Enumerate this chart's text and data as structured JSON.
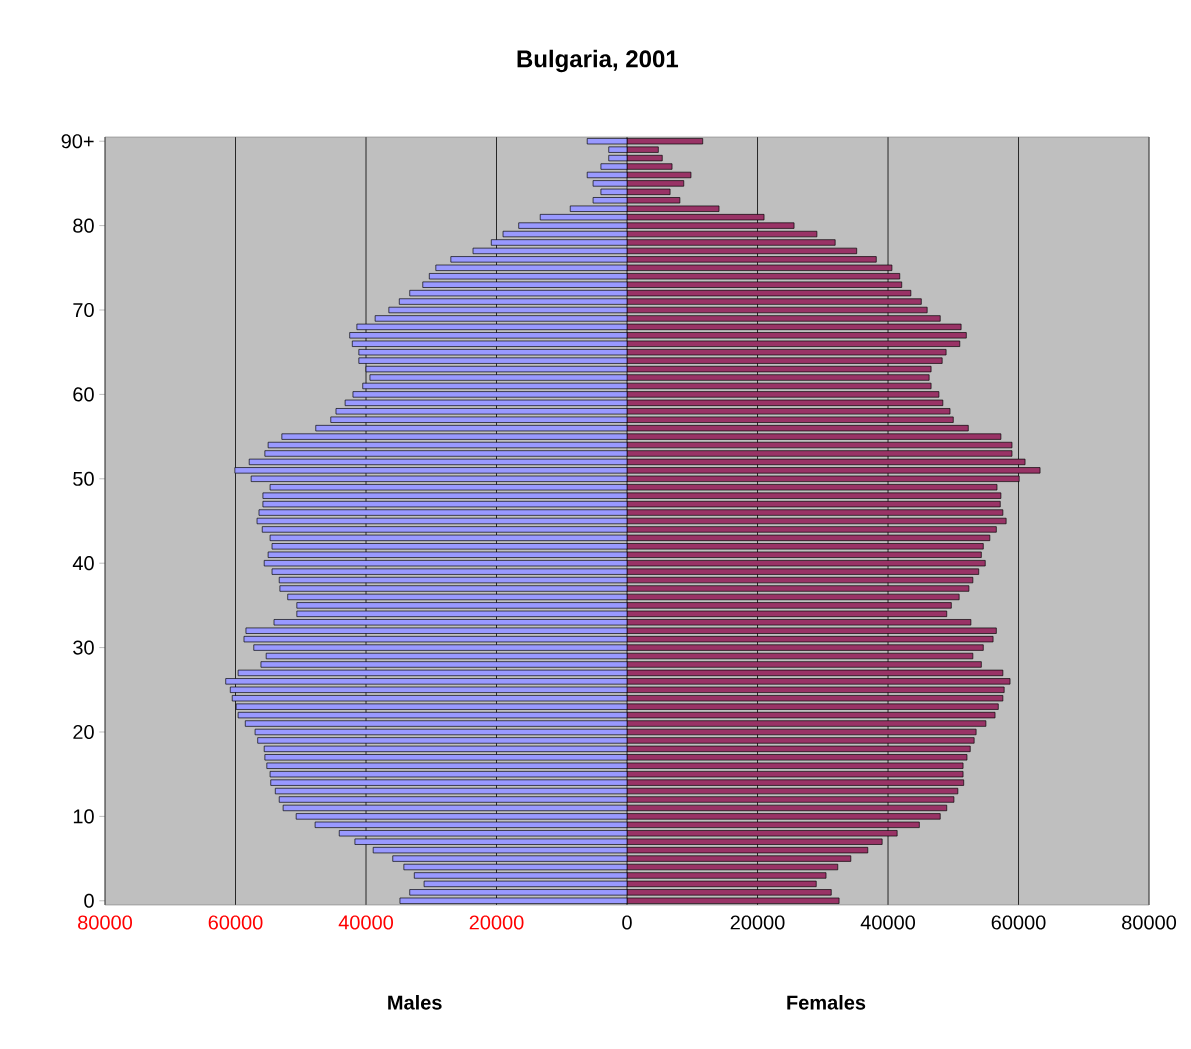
{
  "chart_data": {
    "type": "bar",
    "orientation": "horizontal",
    "title": "Bulgaria, 2001",
    "annotations": [
      "Males",
      "Females"
    ],
    "categories": [
      "90+",
      null,
      null,
      null,
      null,
      null,
      null,
      null,
      null,
      null,
      "80",
      null,
      null,
      null,
      null,
      null,
      null,
      null,
      null,
      null,
      "70",
      null,
      null,
      null,
      null,
      null,
      null,
      null,
      null,
      null,
      "60",
      null,
      null,
      null,
      null,
      null,
      null,
      null,
      null,
      null,
      "50",
      null,
      null,
      null,
      null,
      null,
      null,
      null,
      null,
      null,
      "40",
      null,
      null,
      null,
      null,
      null,
      null,
      null,
      null,
      null,
      "30",
      null,
      null,
      null,
      null,
      null,
      null,
      null,
      null,
      null,
      "20",
      null,
      null,
      null,
      null,
      null,
      null,
      null,
      null,
      null,
      "10",
      null,
      null,
      null,
      null,
      null,
      null,
      null,
      null,
      null,
      "0"
    ],
    "series": [
      {
        "color": "#9999ff",
        "values": [
          -6100,
          -2800,
          -2800,
          -4000,
          -6100,
          -5200,
          -4000,
          -5200,
          -8700,
          -13300,
          -16600,
          -19000,
          -20800,
          -23600,
          -27000,
          -29300,
          -30300,
          -31300,
          -33300,
          -34900,
          -36500,
          -38600,
          -41400,
          -42500,
          -42100,
          -41100,
          -41100,
          -40000,
          -39400,
          -40500,
          -42000,
          -43200,
          -44600,
          -45400,
          -47700,
          -52900,
          -55000,
          -55500,
          -57900,
          -60100,
          -57600,
          -54700,
          -55800,
          -55800,
          -56400,
          -56700,
          -55900,
          -54700,
          -54400,
          -55000,
          -55600,
          -54400,
          -53300,
          -53200,
          -52000,
          -50600,
          -50600,
          -54100,
          -58400,
          -58700,
          -57200,
          -55300,
          -56100,
          -59600,
          -61500,
          -60800,
          -60500,
          -59900,
          -59600,
          -58500,
          -57000,
          -56600,
          -55600,
          -55500,
          -55200,
          -54700,
          -54600,
          -53900,
          -53300,
          -52700,
          -50700,
          -47800,
          -44100,
          -41700,
          -38900,
          -35900,
          -34200,
          -32600,
          -31100,
          -33300,
          -34800
        ]
      },
      {
        "color": "#993366",
        "values": [
          11600,
          4800,
          5400,
          6900,
          9800,
          8700,
          6600,
          8100,
          14100,
          21000,
          25600,
          29100,
          31900,
          35200,
          38200,
          40600,
          41800,
          42100,
          43500,
          45100,
          46000,
          48000,
          51200,
          52000,
          51000,
          48900,
          48300,
          46600,
          46300,
          46600,
          47800,
          48400,
          49500,
          50000,
          52300,
          57300,
          59000,
          59000,
          61000,
          63300,
          60100,
          56700,
          57300,
          57200,
          57600,
          58100,
          56600,
          55600,
          54600,
          54300,
          54900,
          53900,
          53000,
          52400,
          50900,
          49700,
          49000,
          52700,
          56600,
          56100,
          54600,
          53000,
          54300,
          57600,
          58700,
          57800,
          57600,
          56900,
          56400,
          55000,
          53500,
          53200,
          52600,
          52100,
          51500,
          51500,
          51600,
          50700,
          50100,
          49000,
          48000,
          44800,
          41400,
          39100,
          36900,
          34300,
          32300,
          30500,
          29000,
          31300,
          32500
        ]
      }
    ],
    "xlim": [
      -80000,
      80000
    ],
    "xticks": [
      {
        "value": -80000,
        "label": "80000"
      },
      {
        "value": -60000,
        "label": "60000"
      },
      {
        "value": -40000,
        "label": "40000"
      },
      {
        "value": -20000,
        "label": "20000"
      },
      0,
      20000,
      40000,
      60000,
      80000
    ],
    "grid": "x",
    "stacked": true
  }
}
